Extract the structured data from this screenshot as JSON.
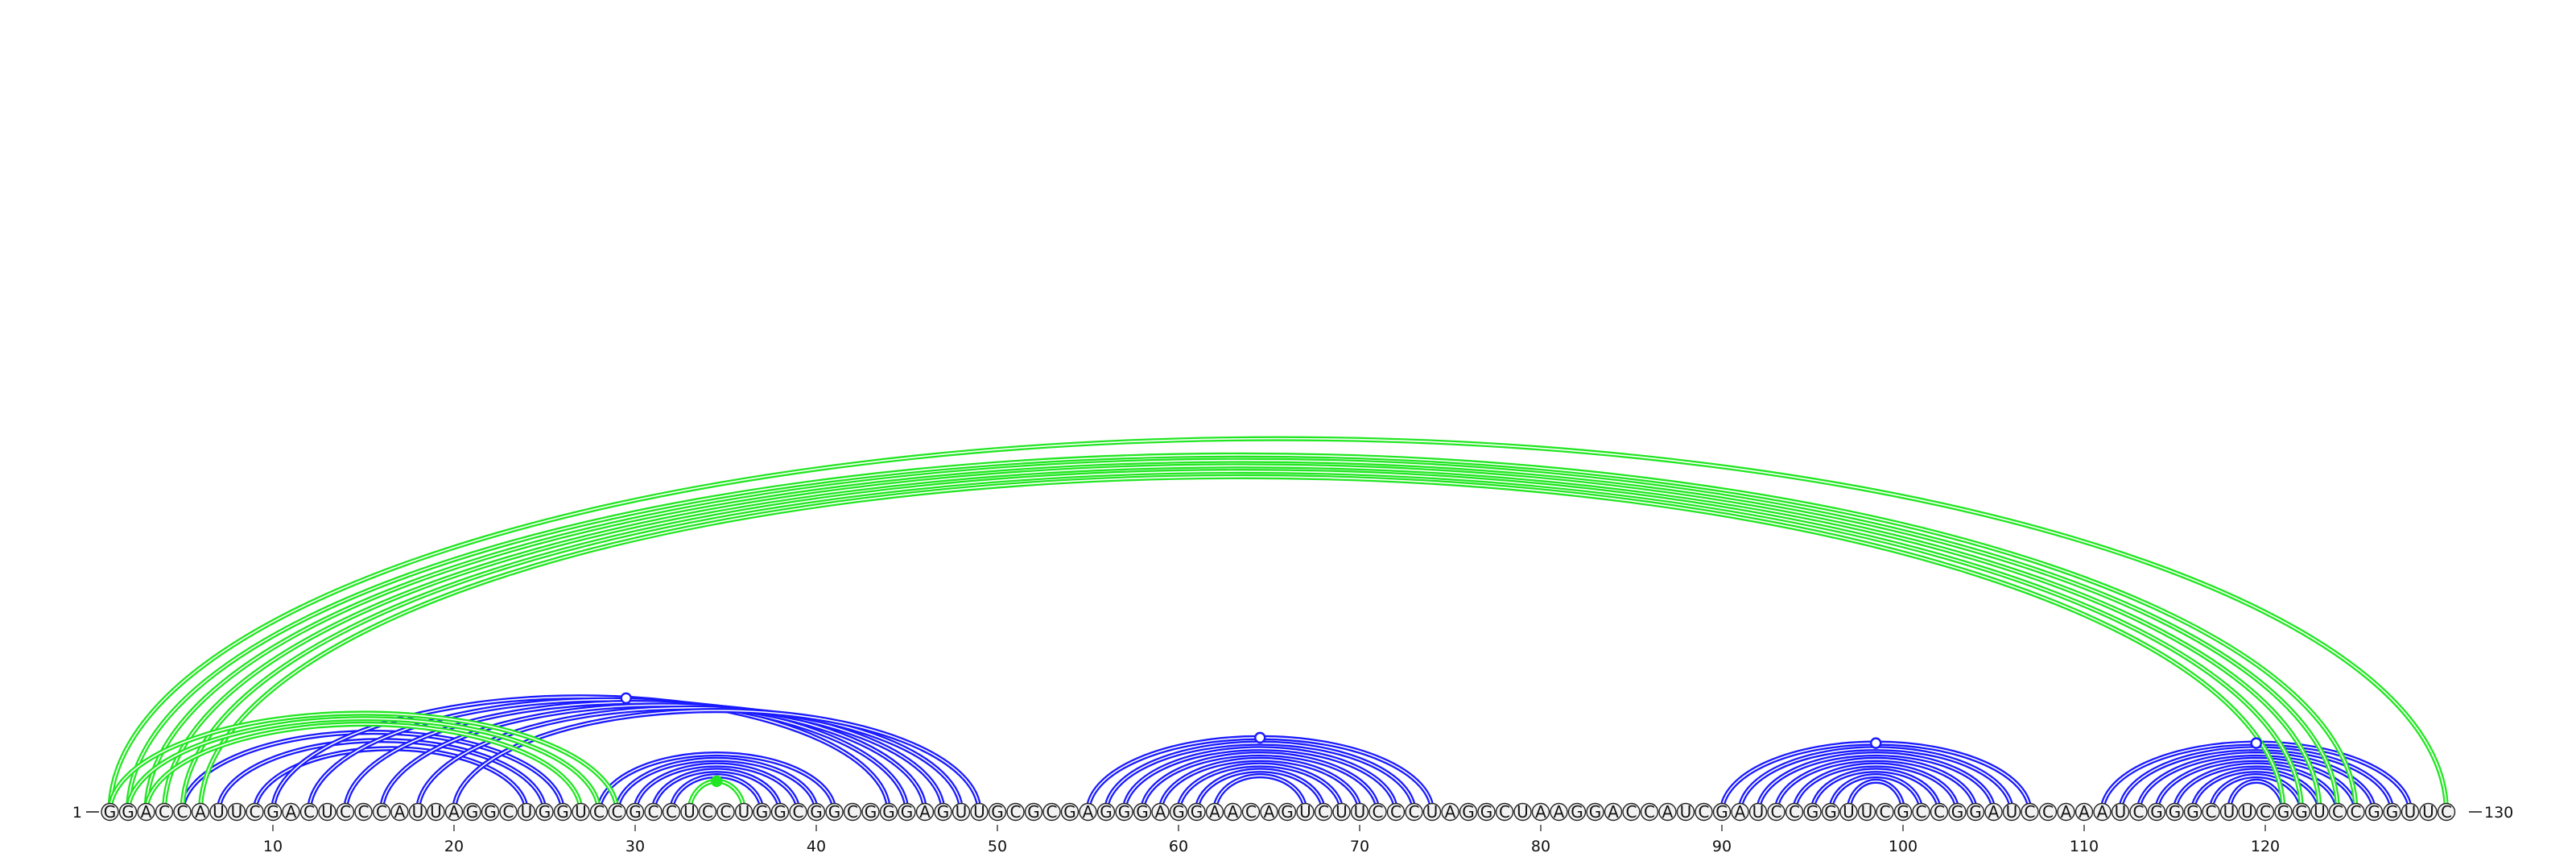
{
  "sequence": "GGACCAUUCGACUCCCAUUAGGCUGGUCCGCCUCCUGGCGGCGGGAGUUGCGCGAGGGAGGAACAGUCUUCCCUAGGCUAAGGACCAUCGAUCCGGUUCGCCGGAUCCAAAUCGGGCUUCGGUCCGGUUC",
  "start_label": "1",
  "end_label": "130",
  "axis_ticks": [
    "10",
    "20",
    "30",
    "40",
    "50",
    "60",
    "70",
    "80",
    "90",
    "100",
    "110",
    "120"
  ],
  "colors": {
    "blue": "#1a1aff",
    "green": "#22e622"
  },
  "chart_data": {
    "type": "arc",
    "length": 130,
    "blue_helices": [
      {
        "pairs": [
          [
            5,
            26
          ],
          [
            7,
            25
          ],
          [
            9,
            24
          ]
        ],
        "marker": null
      },
      {
        "pairs": [
          [
            10,
            44
          ],
          [
            12,
            45
          ],
          [
            14,
            46
          ],
          [
            16,
            47
          ],
          [
            18,
            48
          ],
          [
            20,
            49
          ]
        ],
        "marker": 29.5
      },
      {
        "pairs": [
          [
            28,
            41
          ],
          [
            29,
            40
          ],
          [
            30,
            39
          ],
          [
            31,
            38
          ],
          [
            32,
            37
          ]
        ],
        "marker": null
      },
      {
        "pairs": [
          [
            55,
            74
          ],
          [
            56,
            73
          ],
          [
            57,
            72
          ],
          [
            58,
            71
          ],
          [
            59,
            70
          ],
          [
            60,
            69
          ],
          [
            61,
            68
          ],
          [
            62,
            67
          ]
        ],
        "marker": 64.5
      },
      {
        "pairs": [
          [
            90,
            107
          ],
          [
            91,
            106
          ],
          [
            92,
            105
          ],
          [
            93,
            104
          ],
          [
            94,
            103
          ],
          [
            95,
            102
          ],
          [
            96,
            101
          ],
          [
            97,
            100
          ]
        ],
        "marker": 98.5
      },
      {
        "pairs": [
          [
            111,
            128
          ],
          [
            112,
            127
          ],
          [
            113,
            126
          ],
          [
            114,
            125
          ],
          [
            115,
            124
          ],
          [
            116,
            123
          ],
          [
            117,
            122
          ],
          [
            118,
            121
          ]
        ],
        "marker": 119.5
      }
    ],
    "green_helices": [
      {
        "pairs": [
          [
            1,
            130
          ],
          [
            2,
            125
          ],
          [
            3,
            124
          ],
          [
            4,
            123
          ],
          [
            5,
            122
          ],
          [
            6,
            121
          ]
        ],
        "marker": null
      },
      {
        "pairs": [
          [
            1,
            29
          ],
          [
            2,
            28
          ],
          [
            3,
            27
          ]
        ],
        "marker": null
      },
      {
        "pairs": [
          [
            33,
            36
          ]
        ],
        "marker": 34.5
      }
    ]
  }
}
